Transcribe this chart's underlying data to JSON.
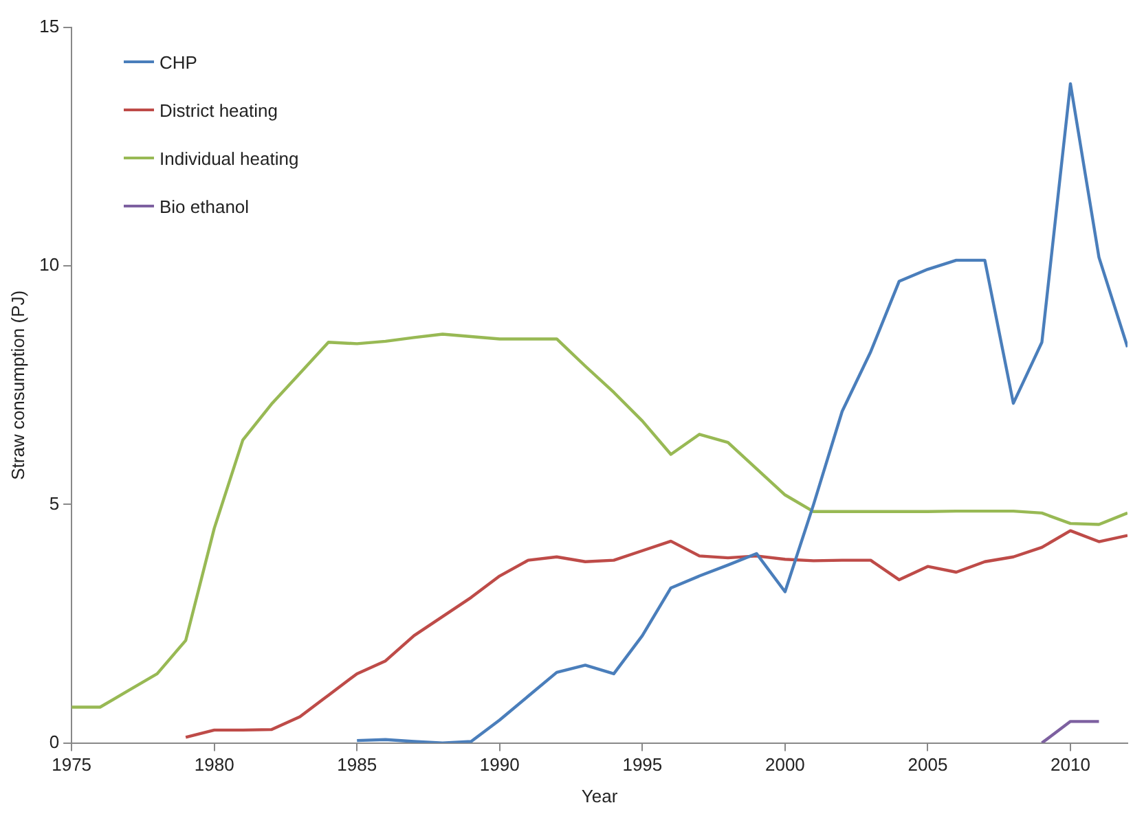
{
  "chart_data": {
    "type": "line",
    "xlabel": "Year",
    "ylabel": "Straw consumption (PJ)",
    "xlim": [
      1975,
      2012
    ],
    "xticks": [
      1975,
      1980,
      1985,
      1990,
      1995,
      2000,
      2005,
      2010
    ],
    "ylim": [
      0,
      15
    ],
    "yticks": [
      0,
      5,
      10,
      15
    ],
    "grid": false,
    "legend": "top left",
    "marker": "none",
    "line_style": "solid",
    "series": [
      {
        "name": "CHP",
        "color": "#4a7ebb",
        "x": [
          1985,
          1986,
          1987,
          1988,
          1989,
          1990,
          1991,
          1992,
          1993,
          1994,
          1995,
          1996,
          1997,
          1998,
          1999,
          2000,
          2001,
          2002,
          2003,
          2004,
          2005,
          2006,
          2007,
          2008,
          2009,
          2010,
          2011,
          2012
        ],
        "values": [
          0.05,
          0.07,
          0.03,
          0,
          0.03,
          0.48,
          0.98,
          1.48,
          1.63,
          1.45,
          2.25,
          3.25,
          3.5,
          3.73,
          3.97,
          3.17,
          5.0,
          6.95,
          8.2,
          9.68,
          9.93,
          10.12,
          10.12,
          7.12,
          8.4,
          13.82,
          10.18,
          8.3
        ]
      },
      {
        "name": "District heating",
        "color": "#be4b48",
        "x": [
          1979,
          1980,
          1981,
          1982,
          1983,
          1984,
          1985,
          1986,
          1987,
          1988,
          1989,
          1990,
          1991,
          1992,
          1993,
          1994,
          1995,
          1996,
          1997,
          1998,
          1999,
          2000,
          2001,
          2002,
          2003,
          2004,
          2005,
          2006,
          2007,
          2008,
          2009,
          2010,
          2011,
          2012
        ],
        "values": [
          0.12,
          0.27,
          0.27,
          0.28,
          0.55,
          1.0,
          1.45,
          1.72,
          2.25,
          2.65,
          3.05,
          3.5,
          3.83,
          3.9,
          3.8,
          3.83,
          4.03,
          4.23,
          3.92,
          3.88,
          3.92,
          3.85,
          3.82,
          3.83,
          3.83,
          3.42,
          3.7,
          3.58,
          3.8,
          3.9,
          4.1,
          4.45,
          4.22,
          4.35
        ]
      },
      {
        "name": "Individual heating",
        "color": "#98b954",
        "x": [
          1975,
          1976,
          1977,
          1978,
          1979,
          1980,
          1981,
          1982,
          1983,
          1984,
          1985,
          1986,
          1987,
          1988,
          1989,
          1990,
          1991,
          1992,
          1993,
          1994,
          1995,
          1996,
          1997,
          1998,
          1999,
          2000,
          2001,
          2002,
          2003,
          2004,
          2005,
          2006,
          2007,
          2008,
          2009,
          2010,
          2011,
          2012
        ],
        "values": [
          0.75,
          0.75,
          1.1,
          1.45,
          2.15,
          4.5,
          6.35,
          7.1,
          7.75,
          8.4,
          8.37,
          8.42,
          8.5,
          8.57,
          8.52,
          8.47,
          8.47,
          8.47,
          7.9,
          7.35,
          6.75,
          6.05,
          6.47,
          6.3,
          5.75,
          5.2,
          4.85,
          4.85,
          4.85,
          4.85,
          4.85,
          4.86,
          4.86,
          4.86,
          4.82,
          4.6,
          4.58,
          4.82
        ]
      },
      {
        "name": "Bio ethanol",
        "color": "#7d60a0",
        "x": [
          2009,
          2010,
          2011
        ],
        "values": [
          0,
          0.45,
          0.45
        ]
      }
    ]
  }
}
